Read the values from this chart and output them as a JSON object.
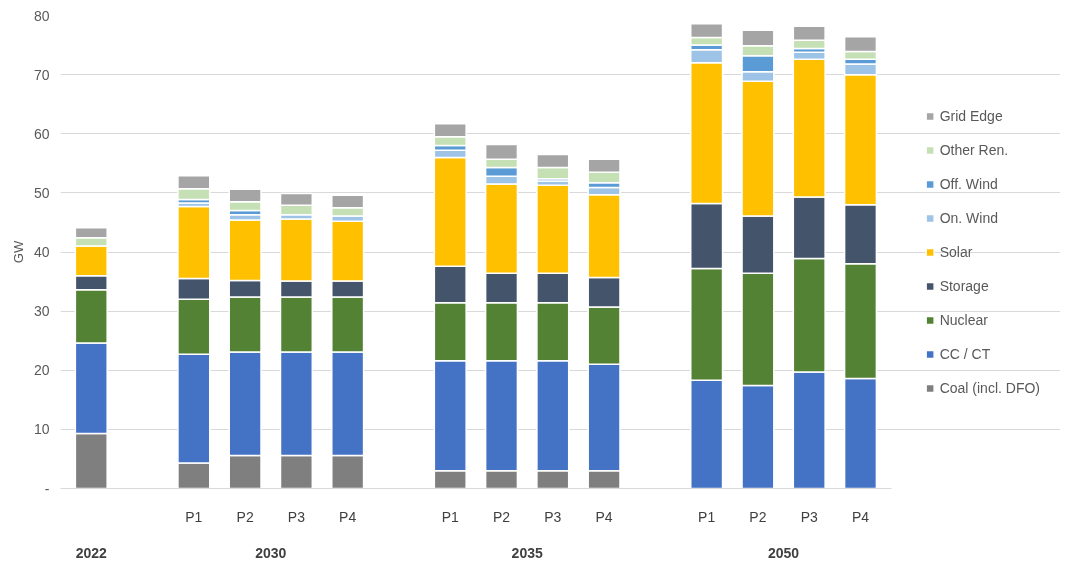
{
  "chart_data": {
    "type": "bar",
    "stacked": true,
    "ylabel": "GW",
    "categories": [
      null,
      null,
      "P1",
      "P2",
      "P3",
      "P4",
      null,
      "P1",
      "P2",
      "P3",
      "P4",
      null,
      "P1",
      "P2",
      "P3",
      "P4"
    ],
    "series": [
      {
        "name": "Coal (incl. DFO)",
        "color": "#7f7f7f",
        "values": [
          9.3,
          null,
          4.3,
          5.6,
          5.6,
          5.6,
          null,
          3.0,
          3.0,
          3.0,
          3.0,
          null,
          null,
          null,
          null,
          null
        ]
      },
      {
        "name": "CC / CT",
        "color": "#4472c4",
        "values": [
          15.3,
          null,
          18.4,
          17.5,
          17.5,
          17.5,
          null,
          18.6,
          18.6,
          18.6,
          18.0,
          null,
          18.3,
          17.4,
          19.7,
          18.6
        ]
      },
      {
        "name": "Nuclear",
        "color": "#548235",
        "values": [
          9.0,
          null,
          9.3,
          9.3,
          9.3,
          9.3,
          null,
          9.8,
          9.8,
          9.8,
          9.7,
          null,
          18.9,
          19.0,
          19.2,
          19.4
        ]
      },
      {
        "name": "Storage",
        "color": "#44546a",
        "values": [
          2.4,
          null,
          3.5,
          2.8,
          2.7,
          2.7,
          null,
          6.2,
          5.0,
          5.0,
          5.0,
          null,
          11.0,
          9.7,
          10.4,
          10.0
        ]
      },
      {
        "name": "Solar",
        "color": "#ffc000",
        "values": [
          5.0,
          null,
          12.2,
          10.2,
          10.5,
          10.1,
          null,
          18.4,
          15.1,
          14.9,
          14.0,
          null,
          23.8,
          22.8,
          23.3,
          22.0
        ]
      },
      {
        "name": "On. Wind",
        "color": "#9dc3e6",
        "values": [
          null,
          null,
          0.6,
          0.9,
          0.7,
          0.9,
          null,
          1.2,
          1.3,
          0.7,
          1.2,
          null,
          2.2,
          1.6,
          1.2,
          1.8
        ]
      },
      {
        "name": "Off. Wind",
        "color": "#5b9bd5",
        "values": [
          null,
          null,
          0.6,
          0.7,
          null,
          null,
          null,
          0.8,
          1.5,
          0.4,
          0.8,
          null,
          0.8,
          2.7,
          0.6,
          0.8
        ]
      },
      {
        "name": "Other Ren.",
        "color": "#c5e0b4",
        "values": [
          1.4,
          null,
          1.8,
          1.5,
          1.6,
          1.4,
          null,
          1.5,
          1.4,
          1.9,
          1.8,
          null,
          1.3,
          1.7,
          1.4,
          1.3
        ]
      },
      {
        "name": "Grid Edge",
        "color": "#a5a5a5",
        "values": [
          1.7,
          null,
          2.2,
          2.1,
          2.0,
          2.1,
          null,
          2.2,
          2.5,
          2.2,
          2.2,
          null,
          2.3,
          2.6,
          2.4,
          2.5
        ]
      }
    ],
    "ylim": [
      0,
      80
    ],
    "yticks": [
      {
        "value": 0,
        "label": "-"
      },
      10,
      20,
      30,
      40,
      50,
      60,
      70,
      80
    ],
    "annotations": [
      "2022",
      "2030",
      "2035",
      "2050"
    ],
    "grid": "y",
    "legend": "right"
  }
}
